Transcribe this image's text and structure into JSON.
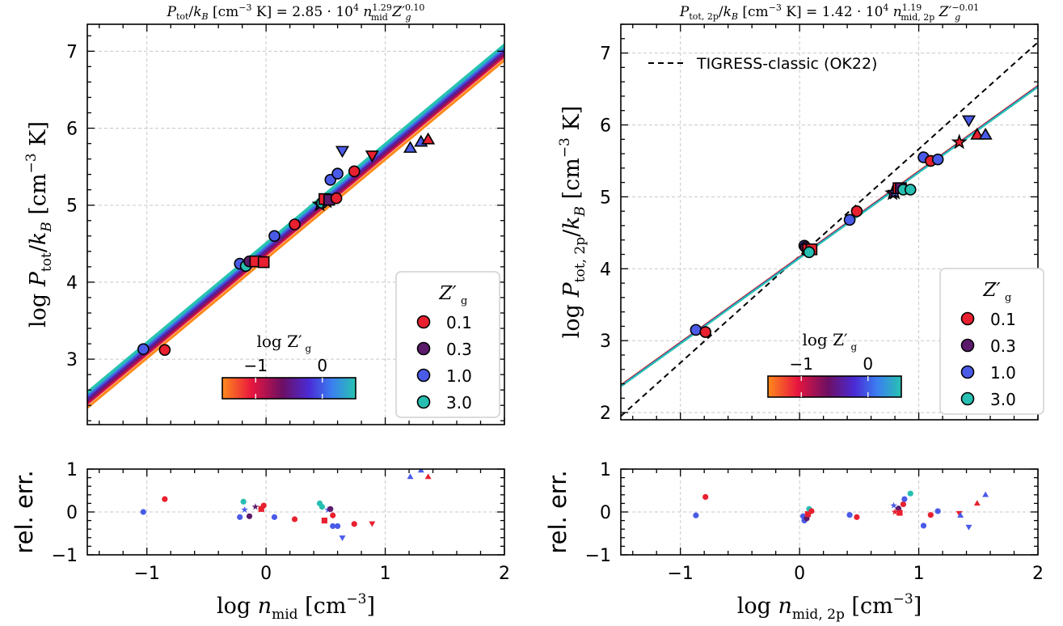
{
  "chart_data": [
    {
      "type": "scatter",
      "title": "P_tot/k_B [cm^-3 K] = 2.85 · 10^4 n_mid^1.29 Z'_g^0.10",
      "xlabel": "log n_mid [cm^-3]",
      "ylabel": "log P_tot/k_B [cm^-3 K]",
      "xlim": [
        -1.5,
        2.0
      ],
      "ylim": [
        2.15,
        7.35
      ],
      "xticks": [
        -1,
        0,
        1,
        2
      ],
      "yticks": [
        3,
        4,
        5,
        6,
        7
      ],
      "grid": true,
      "fit": {
        "A": 28500.0,
        "n_exp": 1.29,
        "z_exp": 0.1
      },
      "fit_lines_logZ": [
        -1.5,
        -1.0,
        -0.7,
        -0.4,
        0.0,
        0.3,
        0.5
      ],
      "legend": {
        "title": "Z'_g",
        "position": "lower-right",
        "entries": [
          "0.1",
          "0.3",
          "1.0",
          "3.0"
        ]
      },
      "colorbar": {
        "label": "log Z'_g",
        "ticks": [
          "−1",
          "0"
        ],
        "range": [
          -1.5,
          0.5
        ]
      },
      "points": [
        {
          "x": -1.03,
          "y": 3.13,
          "marker": "circle",
          "z": "1.0"
        },
        {
          "x": -0.85,
          "y": 3.12,
          "marker": "circle",
          "z": "0.1"
        },
        {
          "x": -0.22,
          "y": 4.24,
          "marker": "circle",
          "z": "1.0"
        },
        {
          "x": -0.17,
          "y": 4.21,
          "marker": "circle",
          "z": "3.0"
        },
        {
          "x": -0.14,
          "y": 4.27,
          "marker": "circle",
          "z": "0.3"
        },
        {
          "x": -0.09,
          "y": 4.27,
          "marker": "square",
          "z": "0.1"
        },
        {
          "x": -0.02,
          "y": 4.26,
          "marker": "square",
          "z": "0.1"
        },
        {
          "x": 0.07,
          "y": 4.6,
          "marker": "circle",
          "z": "1.0"
        },
        {
          "x": 0.24,
          "y": 4.75,
          "marker": "circle",
          "z": "0.1"
        },
        {
          "x": 0.45,
          "y": 5.01,
          "marker": "star",
          "z": "0.3"
        },
        {
          "x": 0.47,
          "y": 5.03,
          "marker": "circle",
          "z": "3.0"
        },
        {
          "x": 0.51,
          "y": 5.05,
          "marker": "star",
          "z": "1.0"
        },
        {
          "x": 0.49,
          "y": 5.08,
          "marker": "square",
          "z": "0.1"
        },
        {
          "x": 0.53,
          "y": 5.07,
          "marker": "square",
          "z": "0.3"
        },
        {
          "x": 0.59,
          "y": 5.09,
          "marker": "circle",
          "z": "0.1"
        },
        {
          "x": 0.54,
          "y": 5.33,
          "marker": "circle",
          "z": "1.0"
        },
        {
          "x": 0.6,
          "y": 5.41,
          "marker": "circle",
          "z": "1.0"
        },
        {
          "x": 0.74,
          "y": 5.44,
          "marker": "circle",
          "z": "0.1"
        },
        {
          "x": 0.64,
          "y": 5.71,
          "marker": "triangle_down",
          "z": "1.0"
        },
        {
          "x": 0.89,
          "y": 5.65,
          "marker": "triangle_down",
          "z": "0.1"
        },
        {
          "x": 1.21,
          "y": 5.74,
          "marker": "triangle_up",
          "z": "1.0"
        },
        {
          "x": 1.3,
          "y": 5.82,
          "marker": "triangle_up",
          "z": "1.0"
        },
        {
          "x": 1.36,
          "y": 5.85,
          "marker": "triangle_up",
          "z": "0.1"
        }
      ]
    },
    {
      "type": "scatter",
      "title": "P_tot,2p/k_B [cm^-3 K] = 1.42 · 10^4 n_mid,2p^1.19 Z'_g^-0.01",
      "xlabel": "log n_mid,2p [cm^-3]",
      "ylabel": "log P_tot,2p/k_B [cm^-3 K]",
      "xlim": [
        -1.5,
        2.0
      ],
      "ylim": [
        1.9,
        7.4
      ],
      "xticks": [
        -1,
        0,
        1,
        2
      ],
      "yticks": [
        2,
        3,
        4,
        5,
        6,
        7
      ],
      "grid": true,
      "fit": {
        "A": 14200.0,
        "n_exp": 1.19,
        "z_exp": -0.01
      },
      "fit_lines_logZ": [
        -1.5,
        -1.0,
        -0.5,
        0.0,
        0.5
      ],
      "reference_line": {
        "label": "TIGRESS-classic (OK22)",
        "x": [
          -1.5,
          2.0
        ],
        "y": [
          1.95,
          7.15
        ],
        "style": "dashed"
      },
      "legend": {
        "title": "Z'_g",
        "position": "lower-right",
        "entries": [
          "0.1",
          "0.3",
          "1.0",
          "3.0"
        ]
      },
      "colorbar": {
        "label": "log Z'_g",
        "ticks": [
          "−1",
          "0"
        ],
        "range": [
          -1.5,
          0.5
        ]
      },
      "points": [
        {
          "x": -0.87,
          "y": 3.15,
          "marker": "circle",
          "z": "1.0"
        },
        {
          "x": -0.79,
          "y": 3.12,
          "marker": "circle",
          "z": "0.1"
        },
        {
          "x": 0.04,
          "y": 4.32,
          "marker": "circle",
          "z": "1.0"
        },
        {
          "x": 0.05,
          "y": 4.3,
          "marker": "circle",
          "z": "0.3"
        },
        {
          "x": 0.07,
          "y": 4.27,
          "marker": "square",
          "z": "0.1"
        },
        {
          "x": 0.1,
          "y": 4.27,
          "marker": "square",
          "z": "0.1"
        },
        {
          "x": 0.08,
          "y": 4.23,
          "marker": "circle",
          "z": "3.0"
        },
        {
          "x": 0.42,
          "y": 4.68,
          "marker": "circle",
          "z": "1.0"
        },
        {
          "x": 0.48,
          "y": 4.8,
          "marker": "circle",
          "z": "0.1"
        },
        {
          "x": 0.78,
          "y": 5.05,
          "marker": "star",
          "z": "0.3"
        },
        {
          "x": 0.8,
          "y": 5.06,
          "marker": "star",
          "z": "1.0"
        },
        {
          "x": 0.83,
          "y": 5.12,
          "marker": "square",
          "z": "0.1"
        },
        {
          "x": 0.85,
          "y": 5.12,
          "marker": "square",
          "z": "0.3"
        },
        {
          "x": 0.87,
          "y": 5.1,
          "marker": "circle",
          "z": "3.0"
        },
        {
          "x": 0.93,
          "y": 5.1,
          "marker": "circle",
          "z": "3.0"
        },
        {
          "x": 1.04,
          "y": 5.55,
          "marker": "circle",
          "z": "1.0"
        },
        {
          "x": 1.1,
          "y": 5.5,
          "marker": "circle",
          "z": "0.1"
        },
        {
          "x": 1.16,
          "y": 5.52,
          "marker": "circle",
          "z": "1.0"
        },
        {
          "x": 1.34,
          "y": 5.76,
          "marker": "star",
          "z": "0.1"
        },
        {
          "x": 1.42,
          "y": 6.07,
          "marker": "triangle_down",
          "z": "1.0"
        },
        {
          "x": 1.49,
          "y": 5.86,
          "marker": "triangle_up",
          "z": "0.1"
        },
        {
          "x": 1.56,
          "y": 5.86,
          "marker": "triangle_up",
          "z": "1.0"
        }
      ]
    },
    {
      "type": "scatter",
      "ylabel": "rel. err.",
      "xlim": [
        -1.5,
        2.0
      ],
      "ylim": [
        -1,
        1
      ],
      "xticks": [
        -1,
        0,
        1,
        2
      ],
      "yticks": [
        -1,
        0,
        1
      ],
      "xtick_labels": [
        "−1",
        "0",
        "1",
        "2"
      ],
      "ytick_labels": [
        "−1",
        "0",
        "1"
      ],
      "grid": true,
      "points": [
        {
          "x": -1.03,
          "y": 0.0,
          "marker": "circle",
          "z": "1.0"
        },
        {
          "x": -0.85,
          "y": 0.3,
          "marker": "circle",
          "z": "0.1"
        },
        {
          "x": -0.22,
          "y": -0.12,
          "marker": "circle",
          "z": "1.0"
        },
        {
          "x": -0.19,
          "y": 0.24,
          "marker": "circle",
          "z": "3.0"
        },
        {
          "x": -0.18,
          "y": 0.05,
          "marker": "star",
          "z": "1.0"
        },
        {
          "x": -0.14,
          "y": -0.1,
          "marker": "circle",
          "z": "0.3"
        },
        {
          "x": -0.09,
          "y": 0.12,
          "marker": "star",
          "z": "0.3"
        },
        {
          "x": -0.04,
          "y": 0.07,
          "marker": "square",
          "z": "0.1"
        },
        {
          "x": -0.02,
          "y": 0.15,
          "marker": "circle",
          "z": "0.1"
        },
        {
          "x": 0.07,
          "y": -0.12,
          "marker": "circle",
          "z": "1.0"
        },
        {
          "x": 0.24,
          "y": -0.17,
          "marker": "circle",
          "z": "0.1"
        },
        {
          "x": 0.45,
          "y": 0.2,
          "marker": "circle",
          "z": "3.0"
        },
        {
          "x": 0.47,
          "y": 0.12,
          "marker": "circle",
          "z": "3.0"
        },
        {
          "x": 0.49,
          "y": -0.2,
          "marker": "square",
          "z": "0.1"
        },
        {
          "x": 0.52,
          "y": 0.05,
          "marker": "star",
          "z": "1.0"
        },
        {
          "x": 0.54,
          "y": 0.07,
          "marker": "circle",
          "z": "0.3"
        },
        {
          "x": 0.56,
          "y": -0.08,
          "marker": "circle",
          "z": "0.1"
        },
        {
          "x": 0.56,
          "y": -0.33,
          "marker": "circle",
          "z": "1.0"
        },
        {
          "x": 0.6,
          "y": -0.33,
          "marker": "circle",
          "z": "1.0"
        },
        {
          "x": 0.64,
          "y": -0.6,
          "marker": "triangle_down",
          "z": "1.0"
        },
        {
          "x": 0.74,
          "y": -0.28,
          "marker": "circle",
          "z": "0.1"
        },
        {
          "x": 0.89,
          "y": -0.27,
          "marker": "triangle_down",
          "z": "0.1"
        },
        {
          "x": 1.21,
          "y": 0.82,
          "marker": "triangle_up",
          "z": "1.0"
        },
        {
          "x": 1.3,
          "y": 0.97,
          "marker": "triangle_up",
          "z": "1.0"
        },
        {
          "x": 1.36,
          "y": 0.82,
          "marker": "triangle_up",
          "z": "0.1"
        }
      ]
    },
    {
      "type": "scatter",
      "ylabel": "rel. err.",
      "xlim": [
        -1.5,
        2.0
      ],
      "ylim": [
        -1,
        1
      ],
      "xticks": [
        -1,
        0,
        1,
        2
      ],
      "yticks": [
        -1,
        0,
        1
      ],
      "xtick_labels": [
        "−1",
        "0",
        "1",
        "2"
      ],
      "ytick_labels": [
        "−1",
        "0",
        "1"
      ],
      "grid": true,
      "points": [
        {
          "x": -0.87,
          "y": -0.08,
          "marker": "circle",
          "z": "1.0"
        },
        {
          "x": -0.79,
          "y": 0.35,
          "marker": "circle",
          "z": "0.1"
        },
        {
          "x": 0.03,
          "y": -0.1,
          "marker": "circle",
          "z": "1.0"
        },
        {
          "x": 0.04,
          "y": -0.2,
          "marker": "circle",
          "z": "1.0"
        },
        {
          "x": 0.06,
          "y": -0.15,
          "marker": "circle",
          "z": "0.3"
        },
        {
          "x": 0.07,
          "y": -0.05,
          "marker": "square",
          "z": "0.1"
        },
        {
          "x": 0.08,
          "y": 0.07,
          "marker": "circle",
          "z": "3.0"
        },
        {
          "x": 0.1,
          "y": 0.02,
          "marker": "circle",
          "z": "0.1"
        },
        {
          "x": 0.42,
          "y": -0.07,
          "marker": "circle",
          "z": "1.0"
        },
        {
          "x": 0.48,
          "y": -0.12,
          "marker": "circle",
          "z": "0.1"
        },
        {
          "x": 0.79,
          "y": 0.15,
          "marker": "star",
          "z": "1.0"
        },
        {
          "x": 0.8,
          "y": 0.0,
          "marker": "star",
          "z": "0.1"
        },
        {
          "x": 0.83,
          "y": 0.08,
          "marker": "circle",
          "z": "0.3"
        },
        {
          "x": 0.84,
          "y": -0.02,
          "marker": "square",
          "z": "0.1"
        },
        {
          "x": 0.87,
          "y": 0.18,
          "marker": "circle",
          "z": "0.1"
        },
        {
          "x": 0.88,
          "y": 0.3,
          "marker": "circle",
          "z": "1.0"
        },
        {
          "x": 0.93,
          "y": 0.43,
          "marker": "circle",
          "z": "3.0"
        },
        {
          "x": 1.04,
          "y": -0.32,
          "marker": "circle",
          "z": "1.0"
        },
        {
          "x": 1.1,
          "y": -0.07,
          "marker": "circle",
          "z": "0.1"
        },
        {
          "x": 1.16,
          "y": 0.02,
          "marker": "circle",
          "z": "1.0"
        },
        {
          "x": 1.34,
          "y": -0.03,
          "marker": "triangle_down",
          "z": "0.1"
        },
        {
          "x": 1.35,
          "y": -0.08,
          "marker": "triangle_up",
          "z": "1.0"
        },
        {
          "x": 1.42,
          "y": -0.35,
          "marker": "triangle_down",
          "z": "1.0"
        },
        {
          "x": 1.49,
          "y": 0.2,
          "marker": "triangle_up",
          "z": "0.1"
        },
        {
          "x": 1.56,
          "y": 0.4,
          "marker": "triangle_up",
          "z": "1.0"
        }
      ]
    }
  ],
  "colors": {
    "0.1": "#e8202f",
    "0.3": "#5c1a6b",
    "1.0": "#4a5be8",
    "3.0": "#27bfb2"
  }
}
